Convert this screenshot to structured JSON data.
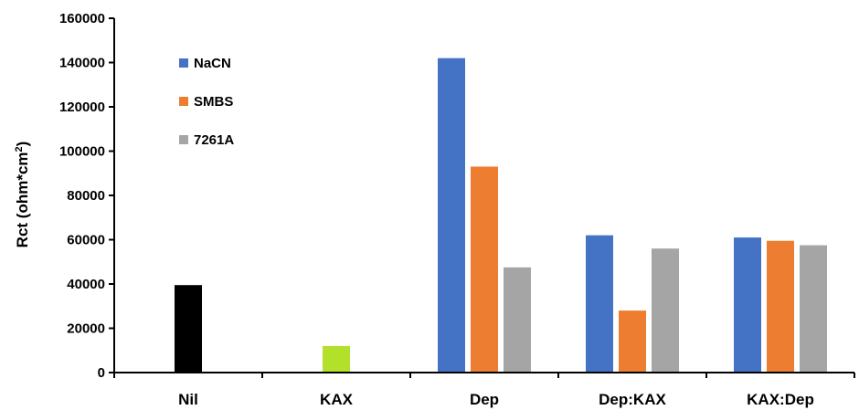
{
  "chart_data": {
    "type": "bar",
    "ylabel": "Rct (ohm*cm2)",
    "ylabel_main": "Rct (ohm*cm",
    "ylabel_sup": "2",
    "ylabel_end": ")",
    "ylim": [
      0,
      160000
    ],
    "yticks": [
      0,
      20000,
      40000,
      60000,
      80000,
      100000,
      120000,
      140000,
      160000
    ],
    "ytick_labels": [
      "0",
      "20000",
      "40000",
      "60000",
      "80000",
      "100000",
      "120000",
      "140000",
      "160000"
    ],
    "categories": [
      "Nil",
      "KAX",
      "Dep",
      "Dep:KAX",
      "KAX:Dep"
    ],
    "legend_position": "top-left",
    "grid": false,
    "single_bars": [
      {
        "category": "Nil",
        "value": 39500,
        "color": "#000000"
      },
      {
        "category": "KAX",
        "value": 12000,
        "color": "#b3e02a"
      }
    ],
    "series": [
      {
        "name": "NaCN",
        "color": "#4472c4",
        "values": [
          null,
          null,
          142000,
          62000,
          61000
        ]
      },
      {
        "name": "SMBS",
        "color": "#ed7d31",
        "values": [
          null,
          null,
          93000,
          28000,
          59500
        ]
      },
      {
        "name": "7261A",
        "color": "#a5a5a5",
        "values": [
          null,
          null,
          47500,
          56000,
          57500
        ]
      }
    ]
  }
}
